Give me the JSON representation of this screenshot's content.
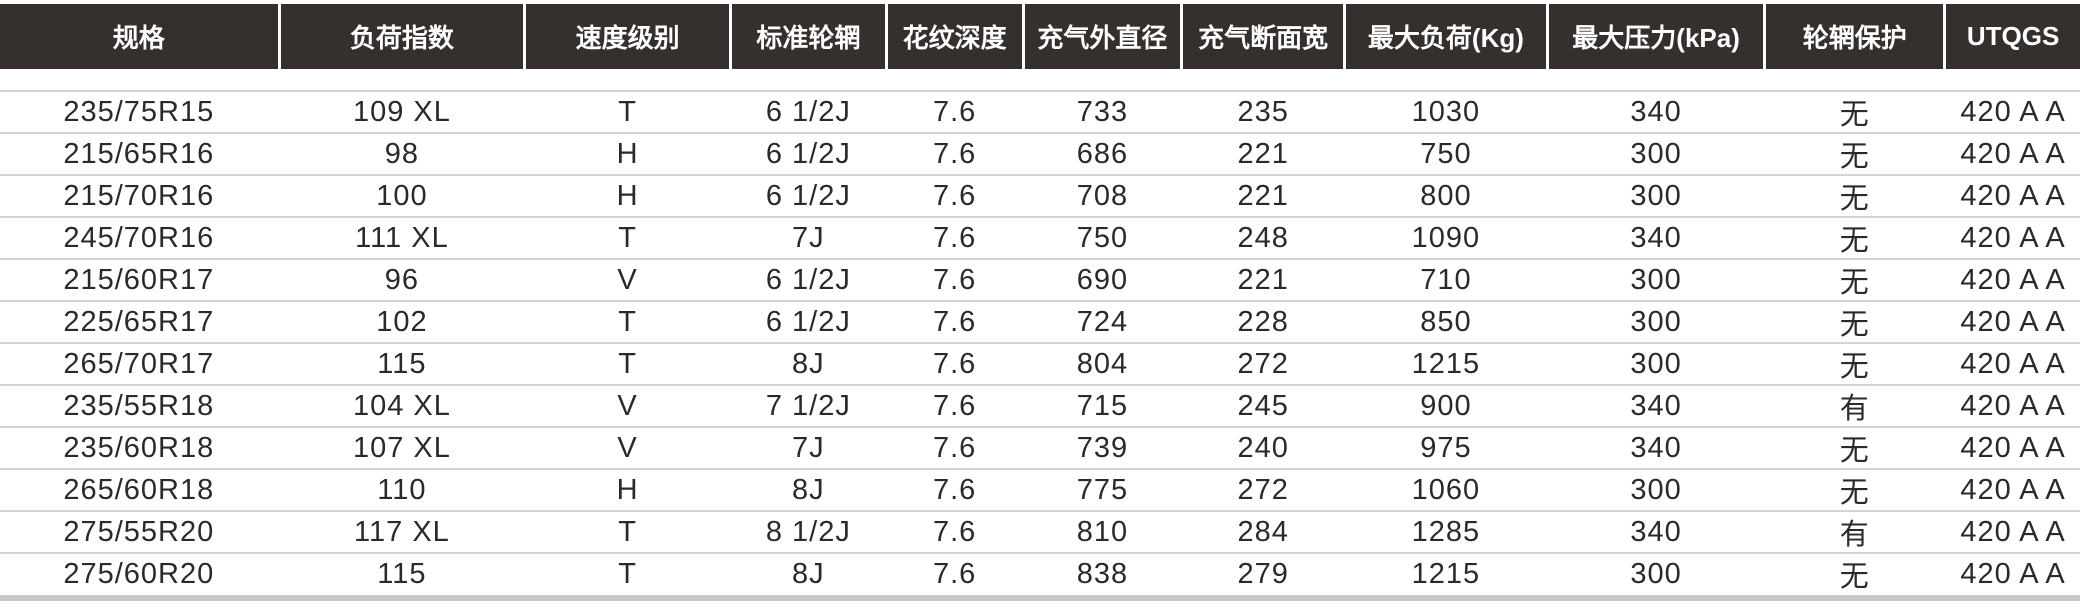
{
  "headers": [
    "规格",
    "负荷指数",
    "速度级别",
    "标准轮辋",
    "花纹深度",
    "充气外直径",
    "充气断面宽",
    "最大负荷(Kg)",
    "最大压力(kPa)",
    "轮辋保护",
    "UTQGS"
  ],
  "rows": [
    [
      "235/75R15",
      "109 XL",
      "T",
      "6 1/2J",
      "7.6",
      "733",
      "235",
      "1030",
      "340",
      "无",
      "420 A A"
    ],
    [
      "215/65R16",
      "98",
      "H",
      "6 1/2J",
      "7.6",
      "686",
      "221",
      "750",
      "300",
      "无",
      "420 A A"
    ],
    [
      "215/70R16",
      "100",
      "H",
      "6 1/2J",
      "7.6",
      "708",
      "221",
      "800",
      "300",
      "无",
      "420 A A"
    ],
    [
      "245/70R16",
      "111 XL",
      "T",
      "7J",
      "7.6",
      "750",
      "248",
      "1090",
      "340",
      "无",
      "420 A A"
    ],
    [
      "215/60R17",
      "96",
      "V",
      "6 1/2J",
      "7.6",
      "690",
      "221",
      "710",
      "300",
      "无",
      "420 A A"
    ],
    [
      "225/65R17",
      "102",
      "T",
      "6 1/2J",
      "7.6",
      "724",
      "228",
      "850",
      "300",
      "无",
      "420 A A"
    ],
    [
      "265/70R17",
      "115",
      "T",
      "8J",
      "7.6",
      "804",
      "272",
      "1215",
      "300",
      "无",
      "420 A A"
    ],
    [
      "235/55R18",
      "104 XL",
      "V",
      "7 1/2J",
      "7.6",
      "715",
      "245",
      "900",
      "340",
      "有",
      "420 A A"
    ],
    [
      "235/60R18",
      "107 XL",
      "V",
      "7J",
      "7.6",
      "739",
      "240",
      "975",
      "340",
      "无",
      "420 A A"
    ],
    [
      "265/60R18",
      "110",
      "H",
      "8J",
      "7.6",
      "775",
      "272",
      "1060",
      "300",
      "无",
      "420 A A"
    ],
    [
      "275/55R20",
      "117 XL",
      "T",
      "8 1/2J",
      "7.6",
      "810",
      "284",
      "1285",
      "340",
      "有",
      "420 A A"
    ],
    [
      "275/60R20",
      "115",
      "T",
      "8J",
      "7.6",
      "838",
      "279",
      "1215",
      "300",
      "无",
      "420 A A"
    ]
  ],
  "colors": {
    "header_bg": "#352f2d",
    "header_text": "#ffffff",
    "row_divider": "#d4d4d4"
  }
}
